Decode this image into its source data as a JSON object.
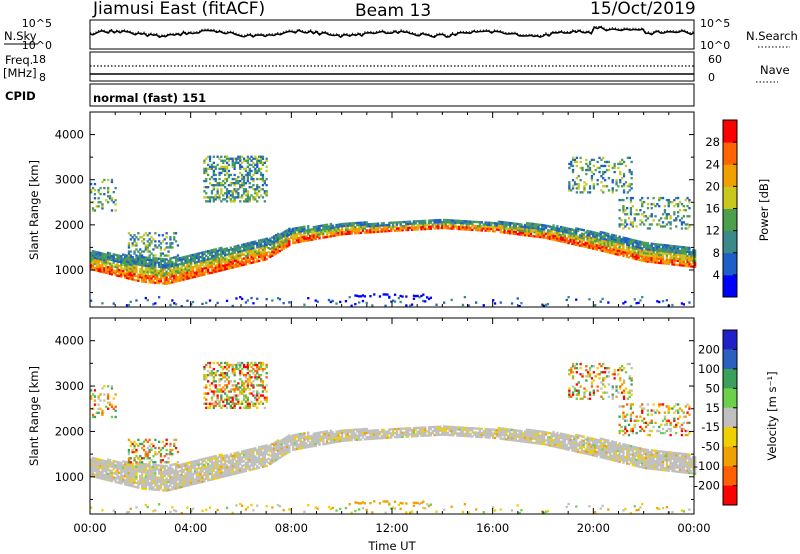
{
  "header": {
    "station": "Jiamusi East (fitACF)",
    "beam": "Beam 13",
    "date": "15/Oct/2019"
  },
  "noise_panel": {
    "left_label": "N.Sky",
    "right_label": "N.Search",
    "left_ticks": [
      "10^5",
      "10^0"
    ],
    "right_ticks": [
      "10^5",
      "10^0"
    ]
  },
  "freq_panel": {
    "left_label_1": "Freq.",
    "left_label_2": "[MHz]",
    "right_label": "Nave",
    "left_ticks": [
      "18",
      "8"
    ],
    "right_ticks": [
      "60",
      "0"
    ]
  },
  "cpid_panel": {
    "label": "CPID",
    "mode": "normal (fast) 151"
  },
  "power_panel": {
    "ylabel": "Slant Range [km]",
    "colorbar_label": "Power [dB]",
    "colorbar_ticks": [
      "28",
      "24",
      "20",
      "16",
      "12",
      "8",
      "4"
    ]
  },
  "velocity_panel": {
    "ylabel": "Slant Range [km]",
    "colorbar_label": "Velocity [m s⁻¹]",
    "colorbar_ticks": [
      "200",
      "100",
      "50",
      "15",
      "-15",
      "-50",
      "-100",
      "-200"
    ]
  },
  "x_axis": {
    "label": "Time UT",
    "ticks": [
      "00:00",
      "04:00",
      "08:00",
      "12:00",
      "16:00",
      "20:00",
      "00:00"
    ]
  },
  "colors": {
    "power_scale": [
      "#0000ff",
      "#1e5ec8",
      "#3a8a8a",
      "#4ca04c",
      "#c8c81e",
      "#f0a000",
      "#ff6400",
      "#ff0000"
    ],
    "velocity_scale": [
      "#2020c8",
      "#2a60c0",
      "#3aa05a",
      "#6cd04a",
      "#c0c0c0",
      "#f0d000",
      "#f0a000",
      "#ff6000",
      "#ff0000"
    ]
  },
  "chart_data": {
    "type": "heatmap",
    "x_range_hours": [
      0,
      24
    ],
    "y_range_km": [
      180,
      4500
    ],
    "y_ticks_km": [
      1000,
      2000,
      3000,
      4000
    ],
    "main_echo_band": {
      "time_hours": [
        0,
        2,
        3,
        5,
        7,
        8,
        10,
        12,
        14,
        16,
        18,
        20,
        22,
        24
      ],
      "center_km": [
        1200,
        1000,
        950,
        1200,
        1450,
        1750,
        1900,
        1950,
        2000,
        1950,
        1850,
        1650,
        1400,
        1250
      ],
      "width_km": [
        400,
        550,
        550,
        500,
        450,
        350,
        250,
        200,
        180,
        220,
        300,
        400,
        450,
        400
      ]
    }
  }
}
